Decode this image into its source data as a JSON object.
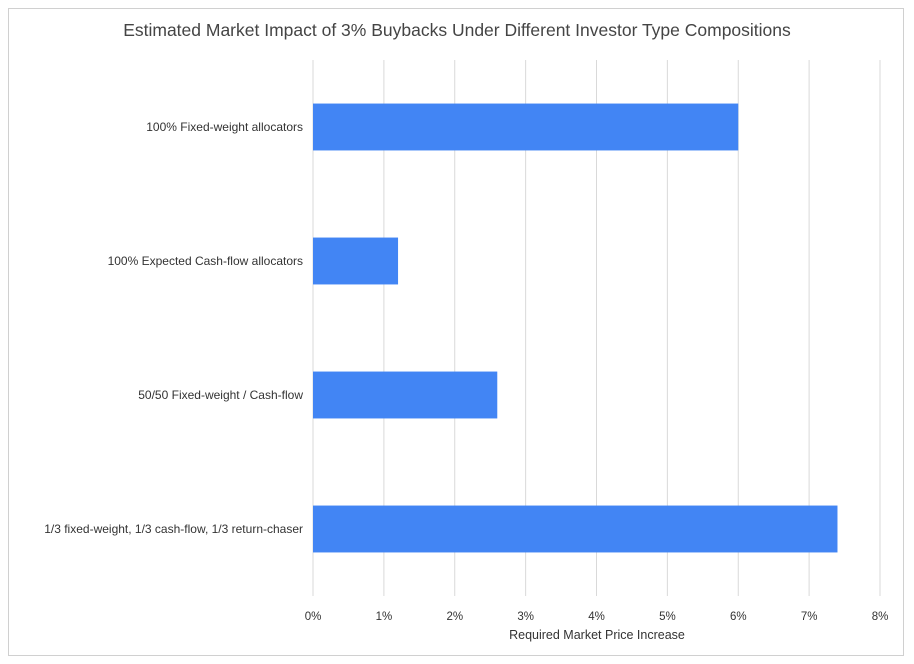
{
  "chart_data": {
    "type": "bar",
    "orientation": "horizontal",
    "title": "Estimated Market Impact of 3% Buybacks Under Different Investor Type Compositions",
    "xlabel": "Required Market Price Increase",
    "ylabel": "",
    "categories": [
      "100% Fixed-weight allocators",
      "100% Expected Cash-flow allocators",
      "50/50 Fixed-weight / Cash-flow",
      "1/3 fixed-weight, 1/3 cash-flow, 1/3 return-chaser"
    ],
    "values": [
      6.0,
      1.2,
      2.6,
      7.4
    ],
    "unit": "%",
    "xlim": [
      0,
      8
    ],
    "xticks": [
      "0%",
      "1%",
      "2%",
      "3%",
      "4%",
      "5%",
      "6%",
      "7%",
      "8%"
    ],
    "grid": "vertical",
    "legend": "none",
    "colors": {
      "bar": "#4285f4",
      "grid": "#d9d9d9",
      "text": "#333333"
    }
  }
}
